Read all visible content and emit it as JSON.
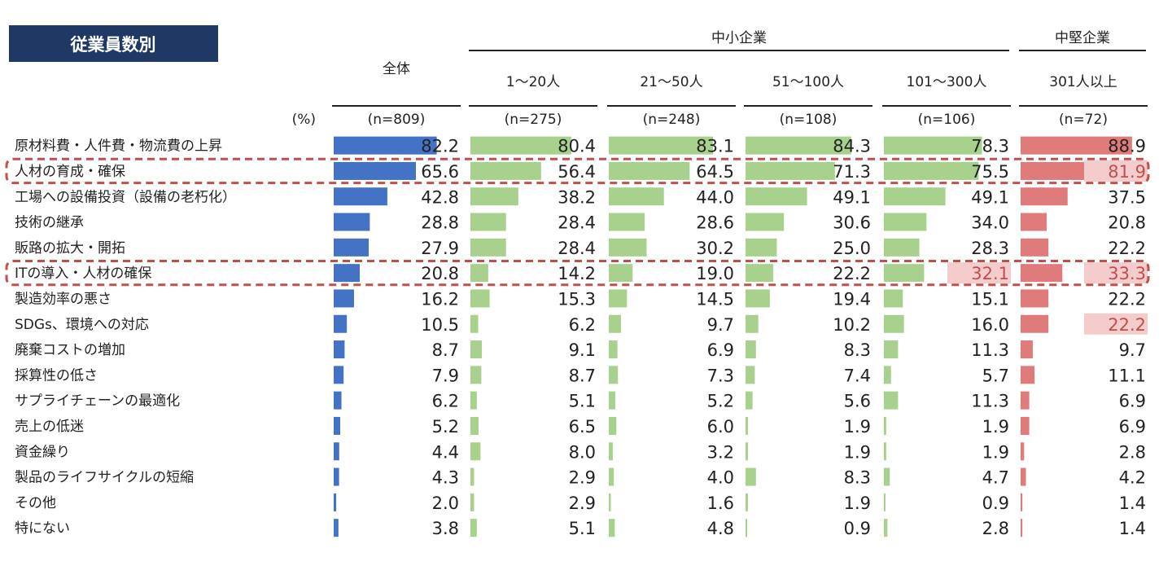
{
  "title": "従業員数別",
  "unit_label": "(%)",
  "groups": {
    "sme": "中小企業",
    "mid": "中堅企業"
  },
  "colors": {
    "title_bg": "#1f3864",
    "overall": "#4472c4",
    "sme": "#a9d18e",
    "mid": "#e07b7b",
    "highlight_fill": "#f4cccc",
    "highlight_text": "#c0504d",
    "dashed_box": "#c0504d"
  },
  "chart_data": {
    "type": "table",
    "title": "従業員数別",
    "unit": "(%)",
    "columns": [
      {
        "label": "全体",
        "n": "(n=809)",
        "group": "overall",
        "max": 100
      },
      {
        "label": "1～20人",
        "n": "(n=275)",
        "group": "sme",
        "max": 100
      },
      {
        "label": "21～50人",
        "n": "(n=248)",
        "group": "sme",
        "max": 100
      },
      {
        "label": "51～100人",
        "n": "(n=108)",
        "group": "sme",
        "max": 100
      },
      {
        "label": "101～300人",
        "n": "(n=106)",
        "group": "sme",
        "max": 100
      },
      {
        "label": "301人以上",
        "n": "(n=72)",
        "group": "mid",
        "max": 100
      }
    ],
    "rows": [
      {
        "label": "原材料費・人件費・物流費の上昇",
        "values": [
          "82.2",
          "80.4",
          "83.1",
          "84.3",
          "78.3",
          "88.9"
        ],
        "highlight_cells": []
      },
      {
        "label": "人材の育成・確保",
        "values": [
          "65.6",
          "56.4",
          "64.5",
          "71.3",
          "75.5",
          "81.9"
        ],
        "highlight_cells": [
          5
        ],
        "boxed": true
      },
      {
        "label": "工場への設備投資（設備の老朽化）",
        "values": [
          "42.8",
          "38.2",
          "44.0",
          "49.1",
          "49.1",
          "37.5"
        ],
        "highlight_cells": []
      },
      {
        "label": "技術の継承",
        "values": [
          "28.8",
          "28.4",
          "28.6",
          "30.6",
          "34.0",
          "20.8"
        ],
        "highlight_cells": []
      },
      {
        "label": "販路の拡大・開拓",
        "values": [
          "27.9",
          "28.4",
          "30.2",
          "25.0",
          "28.3",
          "22.2"
        ],
        "highlight_cells": []
      },
      {
        "label": "ITの導入・人材の確保",
        "values": [
          "20.8",
          "14.2",
          "19.0",
          "22.2",
          "32.1",
          "33.3"
        ],
        "highlight_cells": [
          4,
          5
        ],
        "boxed": true
      },
      {
        "label": "製造効率の悪さ",
        "values": [
          "16.2",
          "15.3",
          "14.5",
          "19.4",
          "15.1",
          "22.2"
        ],
        "highlight_cells": []
      },
      {
        "label": "SDGs、環境への対応",
        "values": [
          "10.5",
          "6.2",
          "9.7",
          "10.2",
          "16.0",
          "22.2"
        ],
        "highlight_cells": [
          5
        ]
      },
      {
        "label": "廃棄コストの増加",
        "values": [
          "8.7",
          "9.1",
          "6.9",
          "8.3",
          "11.3",
          "9.7"
        ],
        "highlight_cells": []
      },
      {
        "label": "採算性の低さ",
        "values": [
          "7.9",
          "8.7",
          "7.3",
          "7.4",
          "5.7",
          "11.1"
        ],
        "highlight_cells": []
      },
      {
        "label": "サプライチェーンの最適化",
        "values": [
          "6.2",
          "5.1",
          "5.2",
          "5.6",
          "11.3",
          "6.9"
        ],
        "highlight_cells": []
      },
      {
        "label": "売上の低迷",
        "values": [
          "5.2",
          "6.5",
          "6.0",
          "1.9",
          "1.9",
          "6.9"
        ],
        "highlight_cells": []
      },
      {
        "label": "資金繰り",
        "values": [
          "4.4",
          "8.0",
          "3.2",
          "1.9",
          "1.9",
          "2.8"
        ],
        "highlight_cells": []
      },
      {
        "label": "製品のライフサイクルの短縮",
        "values": [
          "4.3",
          "2.9",
          "4.0",
          "8.3",
          "4.7",
          "4.2"
        ],
        "highlight_cells": []
      },
      {
        "label": "その他",
        "values": [
          "2.0",
          "2.9",
          "1.6",
          "1.9",
          "0.9",
          "1.4"
        ],
        "highlight_cells": []
      },
      {
        "label": "特にない",
        "values": [
          "3.8",
          "5.1",
          "4.8",
          "0.9",
          "2.8",
          "1.4"
        ],
        "highlight_cells": []
      }
    ]
  }
}
